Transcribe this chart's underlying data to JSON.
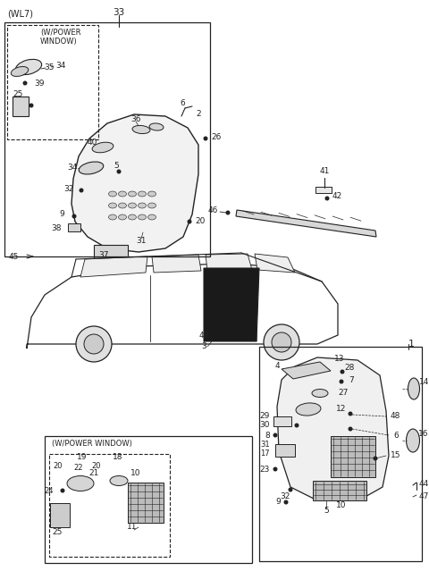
{
  "bg_color": "#ffffff",
  "line_color": "#222222",
  "fig_width": 4.8,
  "fig_height": 6.58,
  "dpi": 100,
  "wl7_label": "(WL7)",
  "part33": "33",
  "upper_box_label_1": "(W/POWER",
  "upper_box_label_2": "WINDOW)",
  "lower_left_box_label": "(W/POWER WINDOW)",
  "main_part_number": "1"
}
